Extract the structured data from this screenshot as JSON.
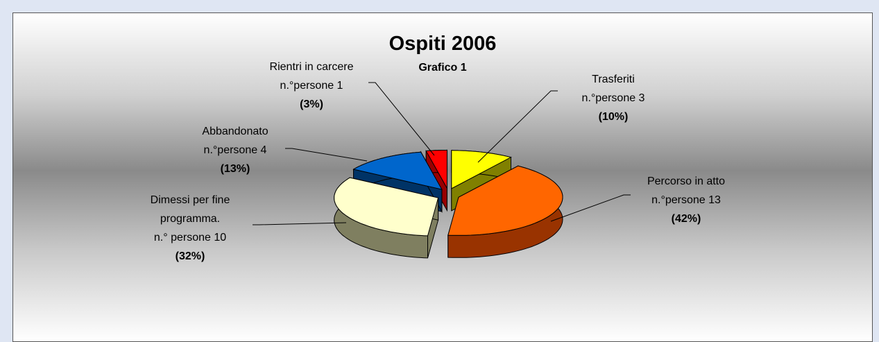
{
  "chart_data": {
    "type": "pie",
    "title": "Ospiti 2006",
    "subtitle": "Grafico 1",
    "categories": [
      "Trasferiti",
      "Percorso in atto",
      "Dimessi per fine programma.",
      "Abbandonato",
      "Rientri in carcere"
    ],
    "values": [
      3,
      13,
      10,
      4,
      1
    ],
    "value_labels": [
      "n.°persone 3",
      "n.°persone 13",
      "n.° persone 10",
      "n.°persone 4",
      "n.°persone 1"
    ],
    "percent_labels": [
      "(10%)",
      "(42%)",
      "(32%)",
      "(13%)",
      "(3%)"
    ],
    "colors": [
      "#ffff00",
      "#ff6600",
      "#ffffcc",
      "#0066cc",
      "#ff0000"
    ],
    "side_colors": [
      "#808000",
      "#993300",
      "#7f7f60",
      "#003366",
      "#990000"
    ]
  }
}
